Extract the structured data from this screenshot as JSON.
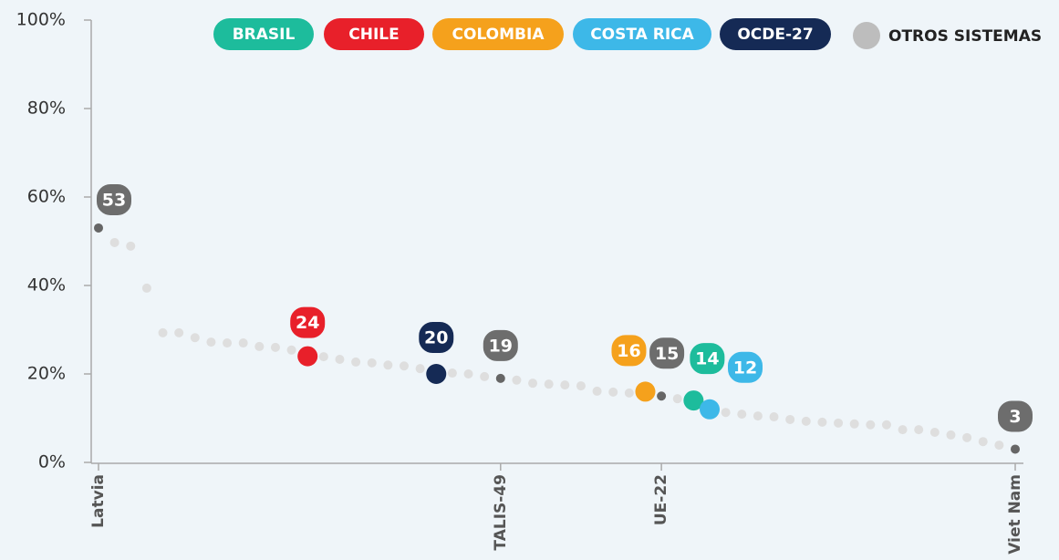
{
  "chart_data": {
    "type": "dot",
    "categories": [
      "Latvia",
      null,
      null,
      null,
      null,
      null,
      null,
      null,
      null,
      null,
      null,
      null,
      null,
      null,
      null,
      null,
      null,
      null,
      null,
      null,
      null,
      null,
      null,
      null,
      null,
      "TALIS-49",
      null,
      null,
      null,
      null,
      null,
      null,
      null,
      null,
      null,
      "UE-22",
      null,
      null,
      null,
      null,
      null,
      null,
      null,
      null,
      null,
      null,
      null,
      null,
      null,
      null,
      null,
      null,
      null,
      null,
      null,
      null,
      null,
      "Viet Nam"
    ],
    "series": [
      {
        "name": "BRASIL",
        "color": "#1dbc9c",
        "values": [
          null,
          null,
          null,
          null,
          null,
          null,
          null,
          null,
          null,
          null,
          null,
          null,
          null,
          null,
          null,
          null,
          null,
          null,
          null,
          null,
          null,
          null,
          null,
          null,
          null,
          null,
          null,
          null,
          null,
          null,
          null,
          null,
          null,
          null,
          null,
          null,
          null,
          14,
          null,
          null,
          null,
          null,
          null,
          null,
          null,
          null,
          null,
          null,
          null,
          null,
          null,
          null,
          null,
          null,
          null,
          null,
          null,
          null
        ]
      },
      {
        "name": "CHILE",
        "color": "#e8202a",
        "values": [
          null,
          null,
          null,
          null,
          null,
          null,
          null,
          null,
          null,
          null,
          null,
          null,
          null,
          24,
          null,
          null,
          null,
          null,
          null,
          null,
          null,
          null,
          null,
          null,
          null,
          null,
          null,
          null,
          null,
          null,
          null,
          null,
          null,
          null,
          null,
          null,
          null,
          null,
          null,
          null,
          null,
          null,
          null,
          null,
          null,
          null,
          null,
          null,
          null,
          null,
          null,
          null,
          null,
          null,
          null,
          null,
          null,
          null
        ]
      },
      {
        "name": "COLOMBIA",
        "color": "#f5a11c",
        "values": [
          null,
          null,
          null,
          null,
          null,
          null,
          null,
          null,
          null,
          null,
          null,
          null,
          null,
          null,
          null,
          null,
          null,
          null,
          null,
          null,
          null,
          null,
          null,
          null,
          null,
          null,
          null,
          null,
          null,
          null,
          null,
          null,
          null,
          null,
          16,
          null,
          null,
          null,
          null,
          null,
          null,
          null,
          null,
          null,
          null,
          null,
          null,
          null,
          null,
          null,
          null,
          null,
          null,
          null,
          null,
          null,
          null,
          null
        ]
      },
      {
        "name": "COSTA RICA",
        "color": "#3db8e8",
        "values": [
          null,
          null,
          null,
          null,
          null,
          null,
          null,
          null,
          null,
          null,
          null,
          null,
          null,
          null,
          null,
          null,
          null,
          null,
          null,
          null,
          null,
          null,
          null,
          null,
          null,
          null,
          null,
          null,
          null,
          null,
          null,
          null,
          null,
          null,
          null,
          null,
          null,
          null,
          12,
          null,
          null,
          null,
          null,
          null,
          null,
          null,
          null,
          null,
          null,
          null,
          null,
          null,
          null,
          null,
          null,
          null,
          null,
          null
        ]
      },
      {
        "name": "OCDE-27",
        "color": "#152a55",
        "values": [
          null,
          null,
          null,
          null,
          null,
          null,
          null,
          null,
          null,
          null,
          null,
          null,
          null,
          null,
          null,
          null,
          null,
          null,
          null,
          null,
          null,
          20,
          null,
          null,
          null,
          null,
          null,
          null,
          null,
          null,
          null,
          null,
          null,
          null,
          null,
          null,
          null,
          null,
          null,
          null,
          null,
          null,
          null,
          null,
          null,
          null,
          null,
          null,
          null,
          null,
          null,
          null,
          null,
          null,
          null,
          null,
          null,
          null
        ]
      },
      {
        "name": "OTROS SISTEMAS",
        "color": "#bdbdbd",
        "values": [
          53,
          49.7,
          48.9,
          39.4,
          29.3,
          29.3,
          28.2,
          27.2,
          27,
          27,
          26.2,
          26,
          25.4,
          null,
          23.9,
          23.3,
          22.7,
          22.5,
          22,
          21.8,
          21.2,
          null,
          20.2,
          20,
          19.4,
          19,
          18.6,
          17.9,
          17.7,
          17.5,
          17.3,
          16.1,
          15.9,
          15.7,
          null,
          15,
          14.4,
          null,
          null,
          11.3,
          10.9,
          10.5,
          10.3,
          9.7,
          9.3,
          9.1,
          8.9,
          8.7,
          8.5,
          8.5,
          7.4,
          7.4,
          6.8,
          6.2,
          5.6,
          4.7,
          3.9,
          3
        ]
      }
    ],
    "ylim": [
      0,
      100
    ],
    "yticks": [
      {
        "value": 0,
        "label": "0%"
      },
      {
        "value": 20,
        "label": "20%"
      },
      {
        "value": 40,
        "label": "40%"
      },
      {
        "value": 60,
        "label": "60%"
      },
      {
        "value": 80,
        "label": "80%"
      },
      {
        "value": 100,
        "label": "100%"
      }
    ]
  }
}
